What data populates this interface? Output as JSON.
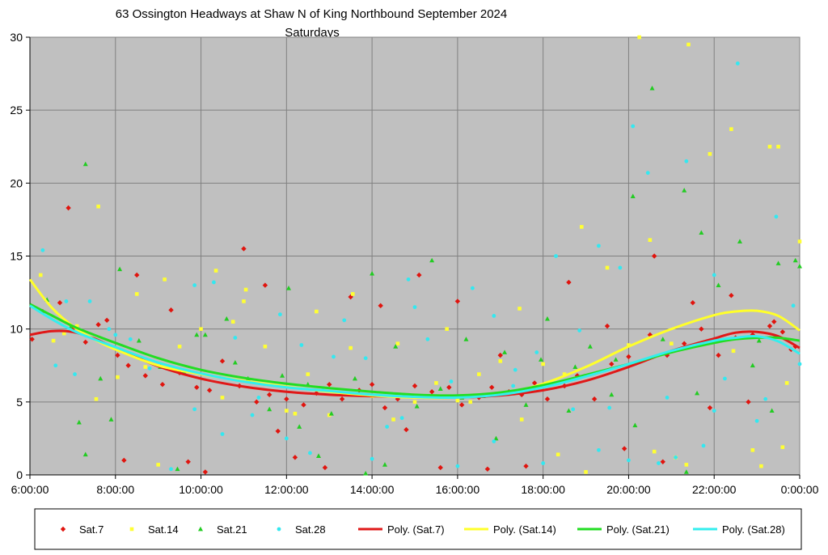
{
  "chart_data": {
    "type": "scatter",
    "title": "63 Ossington Headways at Shaw N of King Northbound September 2024",
    "subtitle": "Saturdays",
    "xlabel": "",
    "ylabel": "",
    "xlim": [
      6,
      24
    ],
    "ylim": [
      0,
      30
    ],
    "x_ticks": [
      6,
      8,
      10,
      12,
      14,
      16,
      18,
      20,
      22,
      24
    ],
    "x_tick_labels": [
      "6:00:00",
      "8:00:00",
      "10:00:00",
      "12:00:00",
      "14:00:00",
      "16:00:00",
      "18:00:00",
      "20:00:00",
      "22:00:00",
      "0:00:00"
    ],
    "y_ticks": [
      0,
      5,
      10,
      15,
      20,
      25,
      30
    ],
    "y_tick_labels": [
      "0",
      "5",
      "10",
      "15",
      "20",
      "25",
      "30"
    ],
    "grid": true,
    "plot_background": "#c0c0c0",
    "legend_position": "bottom",
    "series": [
      {
        "name": "Sat.7",
        "marker": "diamond",
        "color": "#e0140e",
        "x": [
          6.05,
          6.3,
          6.7,
          7.0,
          7.3,
          7.6,
          7.8,
          8.05,
          8.3,
          8.7,
          9.1,
          9.5,
          9.9,
          10.2,
          10.5,
          10.9,
          11.3,
          11.6,
          12.0,
          12.4,
          12.7,
          13.0,
          13.3,
          13.7,
          14.0,
          14.3,
          14.6,
          15.0,
          15.4,
          15.8,
          16.1,
          16.5,
          16.8,
          17.2,
          17.5,
          17.8,
          18.1,
          18.5,
          18.8,
          19.2,
          19.6,
          20.0,
          20.5,
          20.9,
          21.3,
          21.7,
          22.1,
          22.5,
          22.9,
          23.3,
          23.6,
          23.9,
          8.2,
          8.5,
          9.3,
          11.0,
          11.5,
          12.2,
          13.5,
          14.2,
          15.1,
          16.0,
          17.0,
          18.6,
          19.5,
          20.6,
          21.5,
          22.4,
          23.4,
          6.9,
          9.7,
          10.1,
          11.8,
          12.9,
          14.8,
          15.6,
          16.7,
          17.6,
          19.9,
          20.8,
          21.9,
          22.8,
          23.8
        ],
        "y": [
          9.3,
          11.2,
          11.8,
          10.0,
          9.1,
          10.3,
          10.6,
          8.2,
          7.5,
          6.8,
          6.2,
          7.0,
          6.0,
          5.8,
          7.8,
          6.1,
          5.0,
          5.5,
          5.2,
          4.8,
          5.6,
          6.2,
          5.2,
          5.8,
          6.2,
          4.6,
          5.2,
          6.1,
          5.7,
          6.0,
          4.8,
          5.3,
          6.0,
          5.7,
          5.5,
          6.3,
          5.2,
          6.1,
          6.8,
          5.2,
          7.6,
          8.1,
          9.6,
          8.2,
          9.0,
          10.0,
          8.2,
          9.4,
          9.6,
          10.2,
          9.8,
          8.8,
          1.0,
          13.7,
          11.3,
          15.5,
          13.0,
          1.2,
          12.2,
          11.6,
          13.7,
          11.9,
          8.2,
          13.2,
          10.2,
          15.0,
          11.8,
          12.3,
          10.5,
          18.3,
          0.9,
          0.2,
          3.0,
          0.5,
          3.1,
          0.5,
          0.4,
          0.6,
          1.8,
          0.9,
          4.6,
          5.0,
          8.6
        ]
      },
      {
        "name": "Sat.14",
        "marker": "square",
        "color": "#ffff33",
        "x": [
          6.25,
          6.55,
          7.1,
          7.55,
          8.05,
          8.5,
          9.0,
          9.5,
          10.0,
          10.5,
          11.0,
          11.5,
          12.0,
          12.5,
          13.0,
          13.5,
          14.0,
          14.5,
          15.0,
          15.5,
          16.0,
          16.5,
          17.0,
          17.5,
          18.0,
          18.5,
          19.0,
          19.5,
          20.0,
          20.5,
          21.0,
          21.4,
          21.9,
          22.4,
          22.9,
          23.3,
          23.7,
          24.0,
          7.6,
          9.15,
          10.35,
          11.05,
          12.7,
          13.55,
          15.75,
          17.45,
          18.9,
          20.25,
          21.35,
          22.45,
          23.5,
          6.8,
          8.7,
          10.75,
          12.2,
          14.6,
          16.3,
          18.35,
          20.6,
          23.1,
          21.1,
          23.6
        ],
        "y": [
          13.7,
          9.2,
          10.2,
          5.2,
          6.7,
          12.4,
          0.7,
          8.8,
          10.0,
          5.3,
          11.9,
          8.8,
          4.4,
          6.9,
          4.1,
          8.7,
          5.4,
          3.8,
          5.0,
          6.3,
          5.1,
          6.9,
          7.8,
          3.8,
          7.6,
          6.9,
          0.2,
          14.2,
          8.9,
          16.1,
          9.0,
          29.5,
          22.0,
          23.7,
          1.7,
          22.5,
          6.3,
          16.0,
          18.4,
          13.4,
          14.0,
          12.7,
          11.2,
          12.4,
          10.0,
          11.4,
          17.0,
          30.0,
          0.7,
          8.5,
          22.5,
          9.7,
          7.4,
          10.5,
          4.2,
          9.0,
          5.0,
          1.4,
          1.6,
          0.6,
          1.2,
          1.9
        ]
      },
      {
        "name": "Sat.21",
        "marker": "triangle",
        "color": "#22cc22",
        "x": [
          6.4,
          6.95,
          7.3,
          7.65,
          7.9,
          8.1,
          8.55,
          9.05,
          9.6,
          10.1,
          10.6,
          11.1,
          11.6,
          12.05,
          12.5,
          13.05,
          13.6,
          14.0,
          14.55,
          15.05,
          15.6,
          16.1,
          16.6,
          17.1,
          17.6,
          18.1,
          18.6,
          19.1,
          19.6,
          20.1,
          20.55,
          20.8,
          21.3,
          21.7,
          22.1,
          22.6,
          23.05,
          23.5,
          23.9,
          7.3,
          9.9,
          11.9,
          13.85,
          15.4,
          17.95,
          20.15,
          21.35,
          23.35,
          8.6,
          10.8,
          12.3,
          14.3,
          16.2,
          18.75,
          19.7,
          21.6,
          22.9,
          24.0,
          7.15,
          9.45,
          12.75,
          16.9
        ],
        "y": [
          12.0,
          10.1,
          1.4,
          6.6,
          3.8,
          14.1,
          9.2,
          7.4,
          7.1,
          9.6,
          10.7,
          6.6,
          4.5,
          12.8,
          6.2,
          4.2,
          6.6,
          13.8,
          8.8,
          4.7,
          5.9,
          5.3,
          5.4,
          8.4,
          4.8,
          10.7,
          4.4,
          8.8,
          5.5,
          19.1,
          26.5,
          9.3,
          19.5,
          16.6,
          13.0,
          16.0,
          9.2,
          14.5,
          14.7,
          21.3,
          9.6,
          6.8,
          0.1,
          14.7,
          7.9,
          3.4,
          0.2,
          4.4,
          8.0,
          7.7,
          3.3,
          0.7,
          9.3,
          7.4,
          7.9,
          5.6,
          7.5,
          14.3,
          3.6,
          0.4,
          1.3,
          2.5
        ]
      },
      {
        "name": "Sat.28",
        "marker": "circle",
        "color": "#33e8f0",
        "x": [
          6.3,
          6.85,
          7.4,
          7.85,
          8.35,
          8.8,
          9.3,
          9.85,
          10.3,
          10.8,
          11.35,
          11.85,
          12.35,
          12.85,
          13.35,
          13.85,
          14.35,
          14.85,
          15.3,
          15.85,
          16.35,
          16.85,
          17.35,
          17.85,
          18.3,
          18.85,
          19.3,
          19.8,
          20.1,
          20.45,
          20.9,
          21.35,
          21.75,
          22.25,
          22.55,
          23.0,
          23.45,
          23.85,
          9.85,
          11.2,
          12.55,
          15.0,
          16.85,
          18.7,
          19.55,
          20.7,
          22.0,
          8.0,
          10.5,
          13.1,
          14.7,
          17.3,
          19.3,
          21.1,
          23.2,
          6.6,
          12.0,
          14.0,
          16.0,
          18.0,
          20.0,
          22.0,
          24.0,
          7.05
        ],
        "y": [
          15.4,
          11.9,
          11.9,
          10.0,
          9.3,
          7.3,
          0.4,
          4.5,
          13.2,
          9.4,
          5.3,
          11.0,
          8.9,
          5.8,
          10.6,
          8.0,
          3.3,
          13.4,
          9.3,
          6.4,
          12.8,
          2.3,
          7.2,
          8.4,
          15.0,
          9.9,
          15.7,
          14.2,
          23.9,
          20.7,
          5.3,
          21.5,
          2.0,
          6.6,
          28.2,
          3.7,
          17.7,
          11.6,
          13.0,
          4.1,
          1.5,
          11.5,
          10.9,
          4.5,
          4.6,
          0.8,
          13.7,
          9.6,
          2.8,
          8.1,
          3.9,
          6.1,
          1.7,
          1.2,
          5.2,
          7.5,
          2.5,
          1.1,
          0.6,
          0.8,
          1.0,
          4.4,
          7.6,
          6.9
        ]
      },
      {
        "name": "Poly. (Sat.7)",
        "color": "#e01818",
        "line": true,
        "x": [
          6.0,
          6.5,
          7.0,
          7.5,
          8.0,
          9.0,
          10.0,
          11.0,
          12.0,
          13.0,
          14.0,
          15.0,
          16.0,
          17.0,
          18.0,
          19.0,
          20.0,
          21.0,
          22.0,
          22.5,
          23.0,
          23.5,
          24.0
        ],
        "y": [
          9.6,
          9.85,
          9.8,
          9.35,
          8.7,
          7.45,
          6.6,
          6.05,
          5.7,
          5.5,
          5.4,
          5.35,
          5.3,
          5.45,
          5.8,
          6.45,
          7.4,
          8.5,
          9.35,
          9.75,
          9.8,
          9.5,
          8.7
        ]
      },
      {
        "name": "Poly. (Sat.14)",
        "color": "#ffff2a",
        "line": true,
        "x": [
          6.0,
          6.5,
          7.0,
          7.5,
          8.0,
          9.0,
          10.0,
          11.0,
          12.0,
          13.0,
          14.0,
          15.0,
          16.0,
          17.0,
          18.0,
          19.0,
          20.0,
          21.0,
          22.0,
          22.5,
          23.0,
          23.5,
          24.0
        ],
        "y": [
          13.4,
          11.5,
          10.2,
          9.3,
          8.6,
          7.5,
          6.9,
          6.45,
          6.05,
          5.7,
          5.45,
          5.3,
          5.3,
          5.55,
          6.25,
          7.4,
          8.8,
          10.0,
          10.95,
          11.2,
          11.25,
          10.9,
          9.9
        ]
      },
      {
        "name": "Poly. (Sat.21)",
        "color": "#22dd22",
        "line": true,
        "x": [
          6.0,
          6.5,
          7.0,
          7.5,
          8.0,
          9.0,
          10.0,
          11.0,
          12.0,
          13.0,
          14.0,
          15.0,
          16.0,
          17.0,
          18.0,
          19.0,
          20.0,
          21.0,
          22.0,
          22.5,
          23.0,
          23.5,
          24.0
        ],
        "y": [
          11.7,
          10.95,
          10.2,
          9.6,
          9.05,
          8.0,
          7.2,
          6.65,
          6.25,
          5.95,
          5.7,
          5.5,
          5.45,
          5.65,
          6.15,
          6.85,
          7.6,
          8.4,
          9.05,
          9.3,
          9.4,
          9.4,
          9.2
        ]
      },
      {
        "name": "Poly. (Sat.28)",
        "color": "#33eeee",
        "line": true,
        "x": [
          6.0,
          6.5,
          7.0,
          7.5,
          8.0,
          9.0,
          10.0,
          11.0,
          12.0,
          13.0,
          14.0,
          15.0,
          16.0,
          17.0,
          18.0,
          19.0,
          20.0,
          21.0,
          22.0,
          22.5,
          23.0,
          23.5,
          24.0
        ],
        "y": [
          11.6,
          10.7,
          9.9,
          9.3,
          8.75,
          7.7,
          6.95,
          6.4,
          6.0,
          5.75,
          5.5,
          5.35,
          5.3,
          5.5,
          6.0,
          6.75,
          7.6,
          8.5,
          9.2,
          9.4,
          9.5,
          9.15,
          8.3
        ]
      }
    ]
  }
}
